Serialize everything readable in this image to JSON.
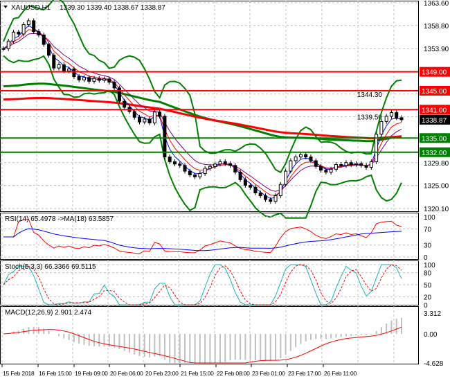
{
  "chart_data": {
    "type": "candlestick",
    "symbol_header": "XAUUSD,H1",
    "ohlc_header": "1339.30 1339.40 1338.67 1338.87",
    "current_price": "1338.87",
    "price_ticks": [
      "1363.60",
      "1358.80",
      "1353.90",
      "1344.30",
      "1339.50",
      "1329.80",
      "1325.00",
      "1320.10"
    ],
    "ylim": [
      1320.1,
      1363.6
    ],
    "levels": [
      {
        "label": "1349.00",
        "value": 1349.0,
        "color": "#ff0000"
      },
      {
        "label": "1345.00",
        "value": 1345.0,
        "color": "#ff0000"
      },
      {
        "label": "1341.00",
        "value": 1341.0,
        "color": "#ff0000"
      },
      {
        "label": "1335.00",
        "value": 1335.0,
        "color": "#008000"
      },
      {
        "label": "1332.00",
        "value": 1332.0,
        "color": "#008000"
      }
    ],
    "x_labels": [
      "15 Feb 2018",
      "16 Feb 15:00",
      "19 Feb 09:00",
      "20 Feb 06:00",
      "20 Feb 23:00",
      "21 Feb 15:00",
      "22 Feb 08:00",
      "23 Feb 01:00",
      "23 Feb 17:00",
      "26 Feb 11:00"
    ],
    "closes": [
      1353.9,
      1355.5,
      1357.4,
      1357.0,
      1359.0,
      1359.8,
      1357.5,
      1356.8,
      1354.8,
      1352.5,
      1349.8,
      1350.5,
      1349.2,
      1349.6,
      1348.0,
      1347.3,
      1347.8,
      1347.0,
      1347.6,
      1347.2,
      1347.5,
      1346.8,
      1345.6,
      1342.8,
      1341.5,
      1340.6,
      1339.4,
      1338.4,
      1339.0,
      1338.2,
      1340.5,
      1339.6,
      1331.0,
      1330.0,
      1329.5,
      1329.2,
      1328.0,
      1327.2,
      1326.8,
      1327.5,
      1328.6,
      1329.0,
      1329.5,
      1330.0,
      1329.6,
      1329.2,
      1327.8,
      1326.2,
      1325.0,
      1324.6,
      1323.4,
      1322.8,
      1322.0,
      1321.6,
      1322.8,
      1325.2,
      1328.0,
      1330.2,
      1331.0,
      1331.5,
      1331.0,
      1330.2,
      1329.0,
      1328.2,
      1327.8,
      1328.4,
      1329.4,
      1329.2,
      1329.8,
      1329.4,
      1329.6,
      1329.2,
      1328.8,
      1330.0,
      1335.8,
      1338.5,
      1339.6,
      1340.4,
      1339.3,
      1338.87
    ],
    "rsi": {
      "label": "RSI(14) 65.4978  ->MA(18) 63.5857",
      "ticks": [
        "100",
        "70",
        "30",
        "0"
      ]
    },
    "stoch": {
      "label": "Stoch(5,3,3) 66.3366 69.5115",
      "ticks": [
        "100",
        "80",
        "50",
        "20",
        "0"
      ]
    },
    "macd": {
      "label": "MACD(12,26,9) 2.901 2.474",
      "ticks": [
        "3.312",
        "0.00",
        "-4.628"
      ]
    },
    "colors": {
      "bands": "#008000",
      "ma_red": "#ff0000",
      "ma_green": "#008000",
      "rsi": "#ff0000",
      "rsi_ma": "#0000ff",
      "stoch_main": "#20b2aa",
      "stoch_signal": "#ff0000",
      "macd_hist": "#c0c0c0",
      "macd_signal": "#ff0000"
    }
  }
}
